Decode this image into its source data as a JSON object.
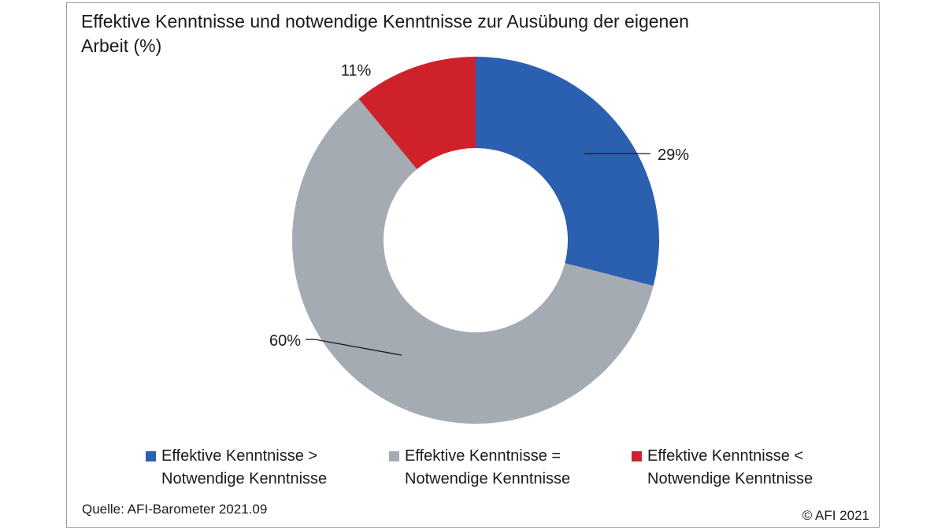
{
  "chart_data": {
    "type": "pie",
    "title": "Effektive Kenntnisse und notwendige Kenntnisse zur Ausübung der eigenen Arbeit (%)",
    "donut": true,
    "slices": [
      {
        "label_line1": "Effektive Kenntnisse >",
        "label_line2": "Notwendige Kenntnisse",
        "value": 29,
        "value_label": "29%",
        "color": "#2b5faf"
      },
      {
        "label_line1": "Effektive Kenntnisse =",
        "label_line2": "Notwendige Kenntnisse",
        "value": 60,
        "value_label": "60%",
        "color": "#a4abb3"
      },
      {
        "label_line1": "Effektive Kenntnisse <",
        "label_line2": "Notwendige Kenntnisse",
        "value": 11,
        "value_label": "11%",
        "color": "#cf2129"
      }
    ],
    "legend_position": "bottom"
  },
  "footer": {
    "source": "Quelle: AFI-Barometer 2021.09",
    "copyright": "© AFI 2021"
  }
}
